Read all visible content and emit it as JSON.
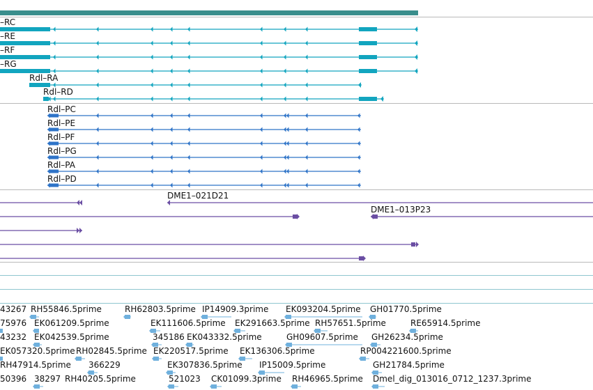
{
  "colors": {
    "gene_bar": "#3a8e8c",
    "transcript": "#12a5bf",
    "protein": "#2f74c8",
    "clone": "#6b4ea3",
    "est": "#6fb0dd",
    "separator": "#b9b9b9",
    "est_separator": "#8fc6cf"
  },
  "transcripts": [
    {
      "label": "–RC"
    },
    {
      "label": "–RE"
    },
    {
      "label": "–RF"
    },
    {
      "label": "–RG"
    },
    {
      "label": "Rdl–RA"
    },
    {
      "label": "Rdl–RD"
    }
  ],
  "proteins": [
    {
      "label": "Rdl–PC"
    },
    {
      "label": "Rdl–PE"
    },
    {
      "label": "Rdl–PF"
    },
    {
      "label": "Rdl–PG"
    },
    {
      "label": "Rdl–PA"
    },
    {
      "label": "Rdl–PD"
    }
  ],
  "clones": [
    {
      "label": ""
    },
    {
      "label": "DME1–021D21"
    },
    {
      "label": "DME1–013P23"
    },
    {
      "label": ""
    },
    {
      "label": ""
    },
    {
      "label": ""
    }
  ],
  "ests": [
    {
      "label": "43267"
    },
    {
      "label": "RH55846.5prime"
    },
    {
      "label": "RH62803.5prime"
    },
    {
      "label": "IP14909.3prime"
    },
    {
      "label": "EK093204.5prime"
    },
    {
      "label": "GH01770.5prime"
    },
    {
      "label": "75976"
    },
    {
      "label": "EK061209.5prime"
    },
    {
      "label": "EK111606.5prime"
    },
    {
      "label": "EK291663.5prime"
    },
    {
      "label": "RH57651.5prime"
    },
    {
      "label": "RE65914.5prime"
    },
    {
      "label": "43232"
    },
    {
      "label": "EK042539.5prime"
    },
    {
      "label": "345186"
    },
    {
      "label": "EK043332.5prime"
    },
    {
      "label": "GH09607.5prime"
    },
    {
      "label": "GH26234.5prime"
    },
    {
      "label": "EK057320.5prime"
    },
    {
      "label": "RH02845.5prime"
    },
    {
      "label": "EK220517.5prime"
    },
    {
      "label": "EK136306.5prime"
    },
    {
      "label": "RP004221600.5prime"
    },
    {
      "label": "RH47914.5prime"
    },
    {
      "label": "366229"
    },
    {
      "label": "EK307836.5prime"
    },
    {
      "label": "IP15009.5prime"
    },
    {
      "label": "GH21784.5prime"
    },
    {
      "label": "50396"
    },
    {
      "label": "38297"
    },
    {
      "label": "RH40205.5prime"
    },
    {
      "label": "521023"
    },
    {
      "label": "CK01099.3prime"
    },
    {
      "label": "RH46965.5prime"
    },
    {
      "label": "Dmel_dig_013016_0712_1237.3prime"
    }
  ]
}
